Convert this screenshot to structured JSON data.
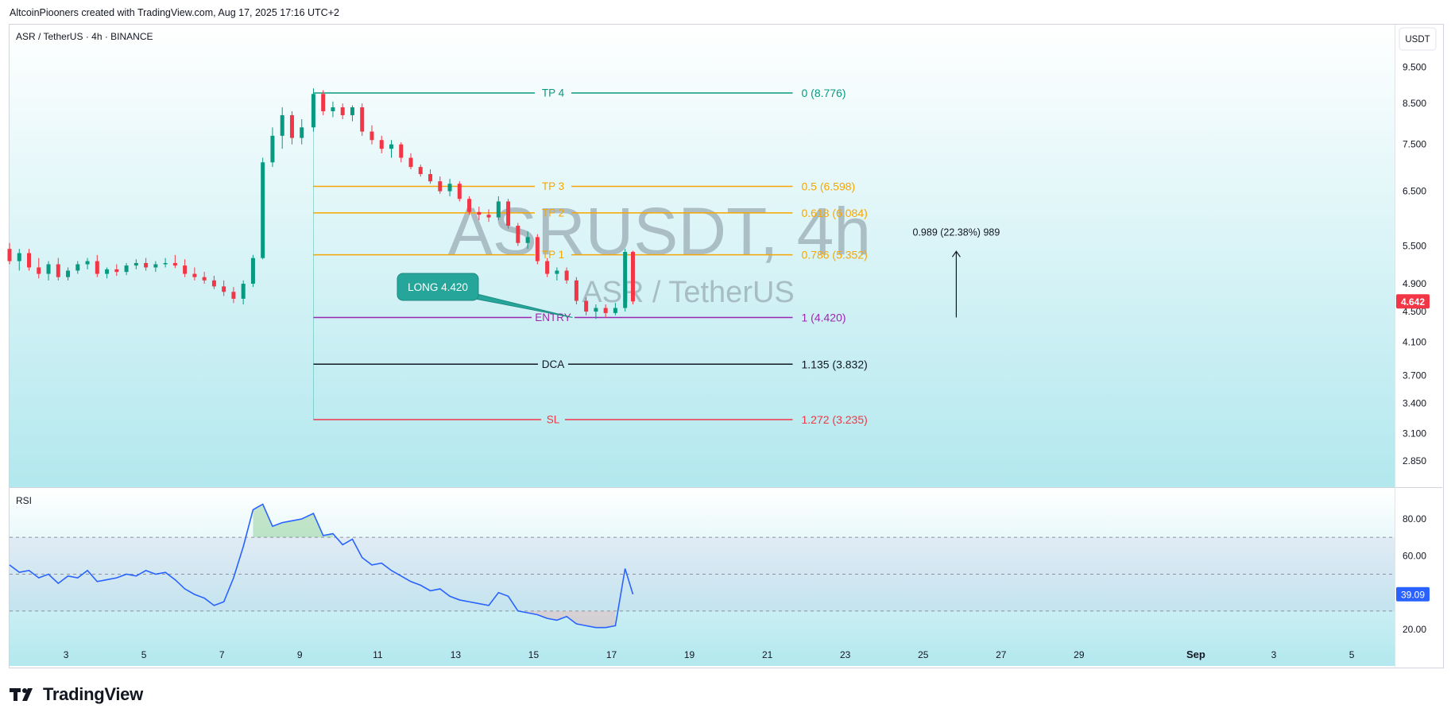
{
  "header": {
    "attribution": "AltcoinPiooners created with TradingView.com, Aug 17, 2025 17:16 UTC+2"
  },
  "footer": {
    "brand": "TradingView"
  },
  "chart_data": [
    {
      "type": "candlestick",
      "symbol_line": "ASR / TetherUS · 4h · BINANCE",
      "watermark": {
        "ticker": "ASRUSDT, 4h",
        "name": "ASR / TetherUS"
      },
      "currency": "USDT",
      "y_ticks": [
        "9.500",
        "8.500",
        "7.500",
        "6.500",
        "5.500",
        "4.900",
        "4.500",
        "4.100",
        "3.700",
        "3.400",
        "3.100",
        "2.850"
      ],
      "y_tick_values": [
        9.5,
        8.5,
        7.5,
        6.5,
        5.5,
        4.9,
        4.5,
        4.1,
        3.7,
        3.4,
        3.1,
        2.85
      ],
      "x_ticks": [
        "3",
        "5",
        "7",
        "9",
        "11",
        "13",
        "15",
        "17",
        "19",
        "21",
        "23",
        "25",
        "27",
        "29",
        "Sep",
        "3",
        "5"
      ],
      "x_tick_days": [
        3,
        5,
        7,
        9,
        11,
        13,
        15,
        17,
        19,
        21,
        23,
        25,
        27,
        29,
        32,
        34,
        36
      ],
      "x_range_days": [
        1.55,
        37.1
      ],
      "last_price": {
        "label": "4.642",
        "value": 4.642,
        "color": "#f23645"
      },
      "fib_levels": [
        {
          "name": "TP 4",
          "label": "0 (8.776)",
          "value": 8.776,
          "color": "#089981"
        },
        {
          "name": "TP 3",
          "label": "0.5 (6.598)",
          "value": 6.598,
          "color": "#f7a600"
        },
        {
          "name": "TP 2",
          "label": "0.618 (6.084)",
          "value": 6.084,
          "color": "#f7a600"
        },
        {
          "name": "TP 1",
          "label": "0.786 (5.352)",
          "value": 5.352,
          "color": "#f7a600"
        },
        {
          "name": "ENTRY",
          "label": "1 (4.420)",
          "value": 4.42,
          "color": "#9c27b0"
        },
        {
          "name": "DCA",
          "label": "1.135 (3.832)",
          "value": 3.832,
          "color": "#131722"
        },
        {
          "name": "SL",
          "label": "1.272 (3.235)",
          "value": 3.235,
          "color": "#f23645"
        }
      ],
      "fib_x_days": [
        9.35,
        21.65
      ],
      "callout": {
        "label": "LONG 4.420",
        "target_day": 16.0,
        "target_value": 4.42,
        "color": "#26a69a"
      },
      "measure": {
        "label": "0.989 (22.38%) 989",
        "day": 25.85,
        "from": 4.42,
        "to": 5.409
      },
      "ohlc": [
        [
          1.55,
          5.45,
          5.55,
          5.2,
          5.25
        ],
        [
          1.8,
          5.25,
          5.45,
          5.1,
          5.38
        ],
        [
          2.05,
          5.38,
          5.45,
          5.1,
          5.15
        ],
        [
          2.3,
          5.15,
          5.3,
          4.98,
          5.05
        ],
        [
          2.55,
          5.05,
          5.25,
          4.95,
          5.2
        ],
        [
          2.8,
          5.2,
          5.3,
          4.95,
          5.0
        ],
        [
          3.05,
          5.0,
          5.15,
          4.95,
          5.1
        ],
        [
          3.3,
          5.1,
          5.25,
          5.05,
          5.2
        ],
        [
          3.55,
          5.2,
          5.3,
          5.12,
          5.25
        ],
        [
          3.8,
          5.25,
          5.35,
          5.0,
          5.05
        ],
        [
          4.05,
          5.05,
          5.15,
          4.98,
          5.12
        ],
        [
          4.3,
          5.12,
          5.2,
          5.02,
          5.08
        ],
        [
          4.55,
          5.08,
          5.22,
          5.03,
          5.18
        ],
        [
          4.8,
          5.18,
          5.28,
          5.12,
          5.22
        ],
        [
          5.05,
          5.22,
          5.3,
          5.1,
          5.15
        ],
        [
          5.3,
          5.15,
          5.25,
          5.08,
          5.2
        ],
        [
          5.55,
          5.2,
          5.3,
          5.15,
          5.22
        ],
        [
          5.8,
          5.22,
          5.35,
          5.14,
          5.18
        ],
        [
          6.05,
          5.18,
          5.28,
          5.0,
          5.05
        ],
        [
          6.3,
          5.05,
          5.15,
          4.95,
          5.0
        ],
        [
          6.55,
          5.0,
          5.08,
          4.9,
          4.95
        ],
        [
          6.8,
          4.95,
          5.02,
          4.82,
          4.86
        ],
        [
          7.05,
          4.86,
          4.95,
          4.72,
          4.78
        ],
        [
          7.3,
          4.78,
          4.85,
          4.62,
          4.68
        ],
        [
          7.55,
          4.68,
          4.95,
          4.6,
          4.9
        ],
        [
          7.8,
          4.9,
          5.35,
          4.85,
          5.3
        ],
        [
          8.05,
          5.3,
          7.2,
          5.28,
          7.1
        ],
        [
          8.3,
          7.1,
          7.9,
          7.0,
          7.7
        ],
        [
          8.55,
          7.7,
          8.4,
          7.4,
          8.2
        ],
        [
          8.8,
          8.2,
          8.3,
          7.5,
          7.65
        ],
        [
          9.05,
          7.65,
          8.1,
          7.5,
          7.9
        ],
        [
          9.35,
          7.9,
          8.9,
          7.8,
          8.75
        ],
        [
          9.6,
          8.75,
          8.85,
          8.2,
          8.3
        ],
        [
          9.85,
          8.3,
          8.55,
          8.15,
          8.4
        ],
        [
          10.1,
          8.4,
          8.5,
          8.1,
          8.2
        ],
        [
          10.35,
          8.2,
          8.45,
          8.05,
          8.4
        ],
        [
          10.6,
          8.4,
          8.5,
          7.7,
          7.8
        ],
        [
          10.85,
          7.8,
          7.95,
          7.5,
          7.6
        ],
        [
          11.1,
          7.6,
          7.7,
          7.3,
          7.4
        ],
        [
          11.35,
          7.4,
          7.6,
          7.2,
          7.5
        ],
        [
          11.6,
          7.5,
          7.55,
          7.1,
          7.2
        ],
        [
          11.85,
          7.2,
          7.3,
          6.95,
          7.0
        ],
        [
          12.1,
          7.0,
          7.05,
          6.8,
          6.85
        ],
        [
          12.35,
          6.85,
          6.95,
          6.65,
          6.7
        ],
        [
          12.6,
          6.7,
          6.8,
          6.45,
          6.5
        ],
        [
          12.85,
          6.5,
          6.75,
          6.4,
          6.65
        ],
        [
          13.1,
          6.65,
          6.7,
          6.3,
          6.35
        ],
        [
          13.35,
          6.35,
          6.4,
          6.05,
          6.1
        ],
        [
          13.6,
          6.1,
          6.2,
          5.95,
          6.05
        ],
        [
          13.85,
          6.05,
          6.15,
          5.92,
          6.0
        ],
        [
          14.1,
          6.0,
          6.4,
          5.95,
          6.3
        ],
        [
          14.35,
          6.3,
          6.35,
          5.8,
          5.85
        ],
        [
          14.6,
          5.85,
          5.9,
          5.5,
          5.55
        ],
        [
          14.85,
          5.55,
          5.75,
          5.45,
          5.65
        ],
        [
          15.1,
          5.65,
          5.7,
          5.2,
          5.25
        ],
        [
          15.35,
          5.25,
          5.3,
          5.0,
          5.05
        ],
        [
          15.6,
          5.05,
          5.15,
          4.95,
          5.1
        ],
        [
          15.85,
          5.1,
          5.15,
          4.9,
          4.95
        ],
        [
          16.1,
          4.95,
          5.0,
          4.6,
          4.65
        ],
        [
          16.35,
          4.65,
          4.7,
          4.45,
          4.5
        ],
        [
          16.6,
          4.5,
          4.6,
          4.4,
          4.55
        ],
        [
          16.85,
          4.55,
          4.6,
          4.42,
          4.48
        ],
        [
          17.1,
          4.48,
          4.62,
          4.45,
          4.55
        ],
        [
          17.35,
          4.55,
          5.45,
          4.5,
          5.4
        ],
        [
          17.55,
          5.4,
          5.42,
          4.6,
          4.642
        ]
      ]
    },
    {
      "type": "line",
      "title": "RSI",
      "y_ticks": [
        "80.00",
        "60.00",
        "20.00"
      ],
      "y_tick_values": [
        80,
        60,
        20
      ],
      "bands": {
        "upper": 70,
        "middle": 50,
        "lower": 30
      },
      "last_value": {
        "label": "39.09",
        "value": 39.09,
        "color": "#2962ff"
      },
      "x": [
        1.55,
        1.8,
        2.05,
        2.3,
        2.55,
        2.8,
        3.05,
        3.3,
        3.55,
        3.8,
        4.05,
        4.3,
        4.55,
        4.8,
        5.05,
        5.3,
        5.55,
        5.8,
        6.05,
        6.3,
        6.55,
        6.8,
        7.05,
        7.3,
        7.55,
        7.8,
        8.05,
        8.3,
        8.55,
        8.8,
        9.05,
        9.35,
        9.6,
        9.85,
        10.1,
        10.35,
        10.6,
        10.85,
        11.1,
        11.35,
        11.6,
        11.85,
        12.1,
        12.35,
        12.6,
        12.85,
        13.1,
        13.35,
        13.6,
        13.85,
        14.1,
        14.35,
        14.6,
        14.85,
        15.1,
        15.35,
        15.6,
        15.85,
        16.1,
        16.35,
        16.6,
        16.85,
        17.1,
        17.35,
        17.55
      ],
      "values": [
        55,
        51,
        52,
        48,
        50,
        45,
        49,
        48,
        52,
        46,
        47,
        48,
        50,
        49,
        52,
        50,
        51,
        47,
        42,
        39,
        37,
        33,
        35,
        48,
        65,
        85,
        88,
        76,
        78,
        79,
        80,
        83,
        71,
        72,
        66,
        69,
        59,
        55,
        56,
        52,
        49,
        46,
        44,
        41,
        42,
        38,
        36,
        35,
        34,
        33,
        40,
        38,
        30,
        29,
        28,
        26,
        25,
        27,
        23,
        22,
        21,
        21,
        22,
        53,
        39.09
      ]
    }
  ]
}
